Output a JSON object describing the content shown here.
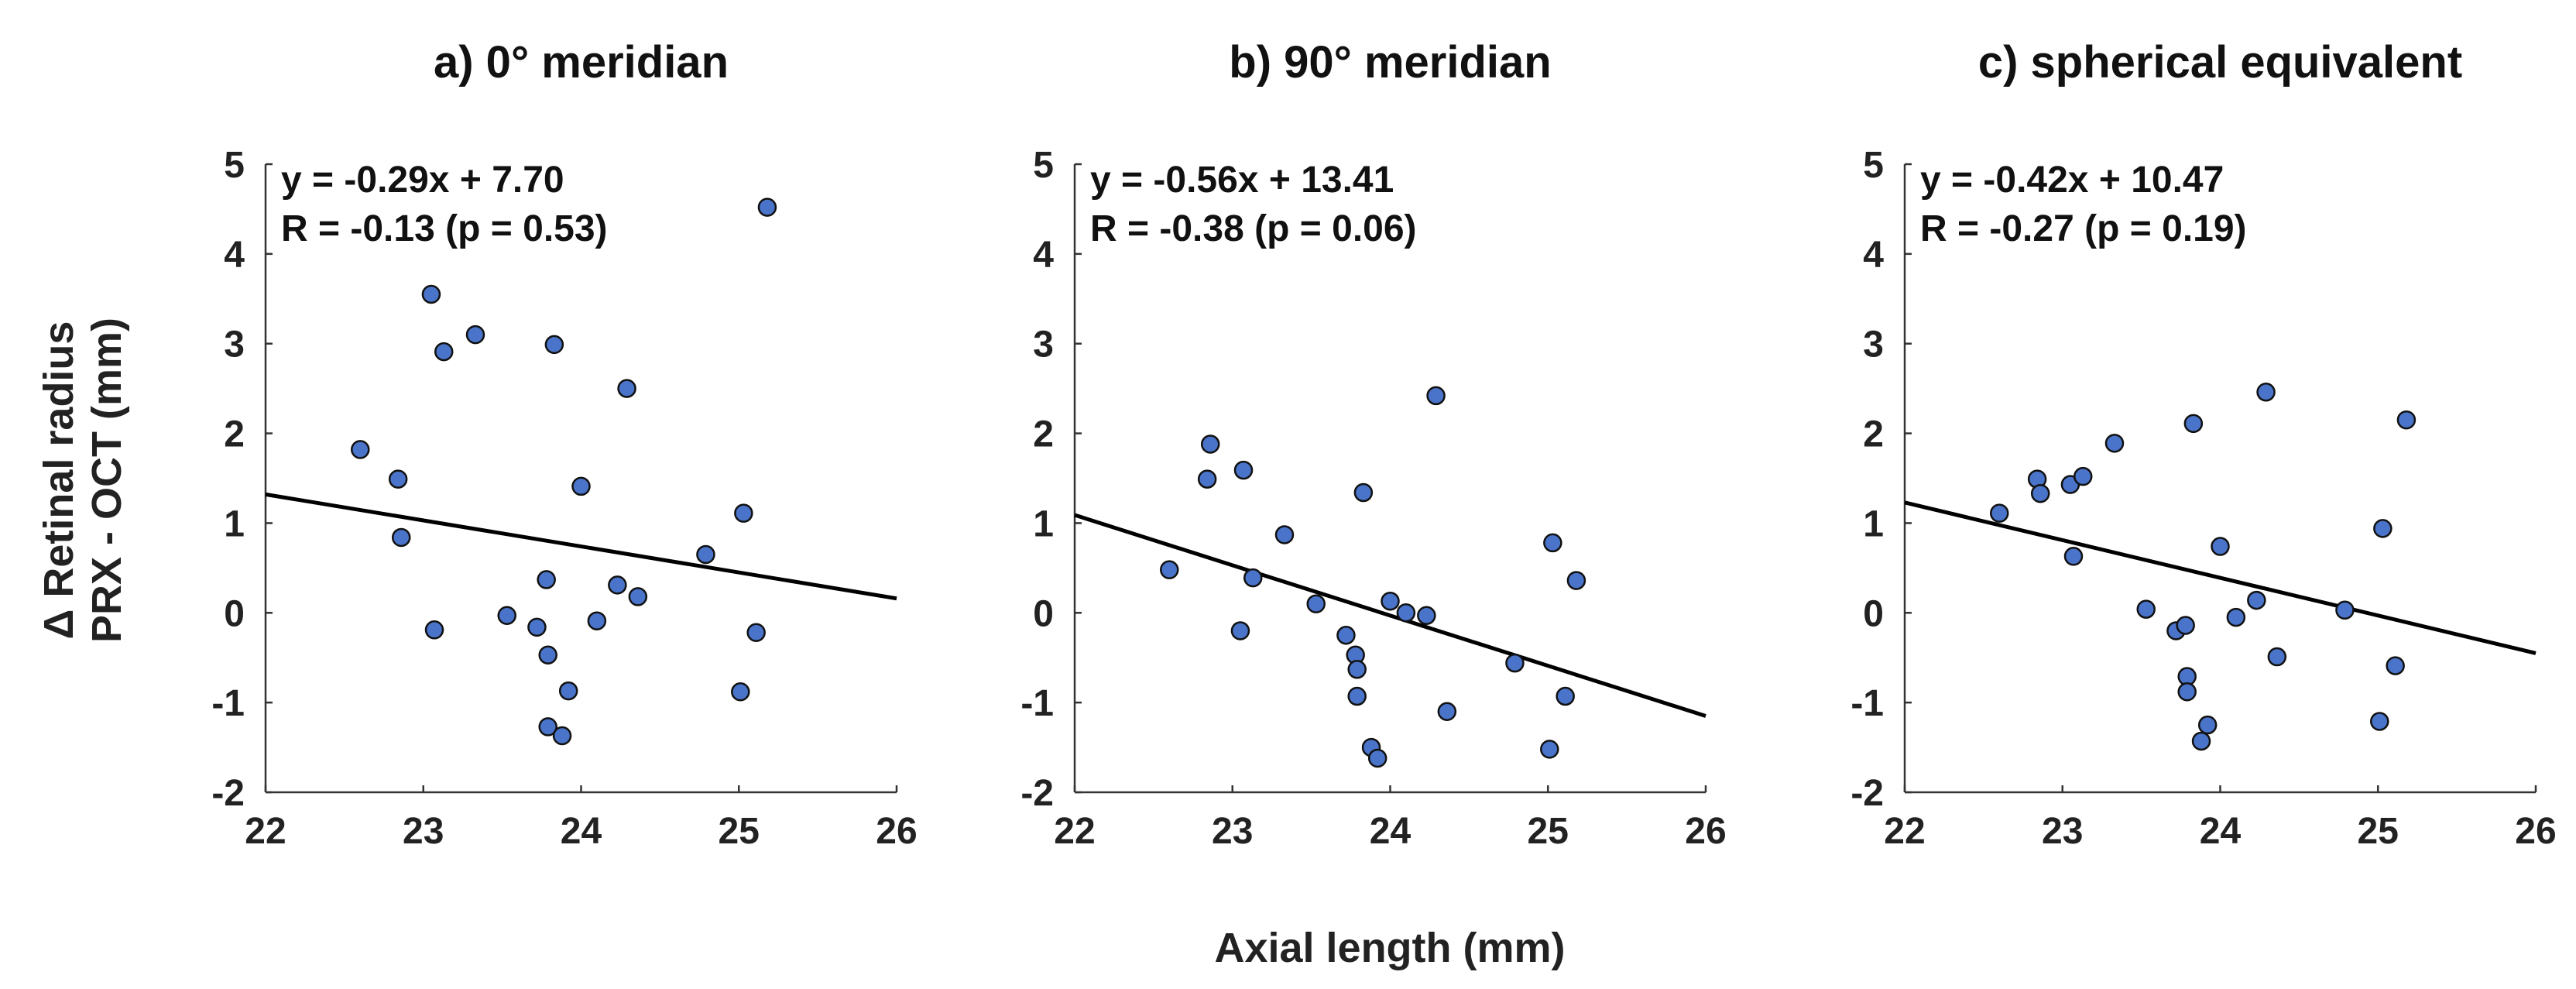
{
  "figure": {
    "xlabel": "Axial length (mm)",
    "ylabel_lines": [
      "Δ Retinal radius",
      "PRX - OCT (mm)"
    ]
  },
  "chart_data": [
    {
      "type": "scatter",
      "title": "a) 0° meridian",
      "equation": "y = -0.29x + 7.70",
      "stats": "R = -0.13 (p = 0.53)",
      "xlim": [
        22,
        26
      ],
      "ylim": [
        -2,
        5
      ],
      "xticks": [
        22,
        23,
        24,
        25,
        26
      ],
      "yticks": [
        5,
        4,
        3,
        2,
        1,
        0,
        -1,
        -2
      ],
      "fit": {
        "slope": -0.29,
        "intercept": 7.7
      },
      "points": [
        {
          "x": 22.6,
          "y": 1.82
        },
        {
          "x": 22.84,
          "y": 1.49
        },
        {
          "x": 22.86,
          "y": 0.84
        },
        {
          "x": 23.05,
          "y": 3.55
        },
        {
          "x": 23.07,
          "y": -0.19
        },
        {
          "x": 23.13,
          "y": 2.91
        },
        {
          "x": 23.33,
          "y": 3.1
        },
        {
          "x": 23.53,
          "y": -0.03
        },
        {
          "x": 23.72,
          "y": -0.16
        },
        {
          "x": 23.78,
          "y": 0.37
        },
        {
          "x": 23.79,
          "y": -0.47
        },
        {
          "x": 23.79,
          "y": -1.27
        },
        {
          "x": 23.83,
          "y": 2.99
        },
        {
          "x": 23.88,
          "y": -1.37
        },
        {
          "x": 23.92,
          "y": -0.87
        },
        {
          "x": 24.0,
          "y": 1.41
        },
        {
          "x": 24.1,
          "y": -0.09
        },
        {
          "x": 24.23,
          "y": 0.31
        },
        {
          "x": 24.29,
          "y": 2.5
        },
        {
          "x": 24.36,
          "y": 0.18
        },
        {
          "x": 24.79,
          "y": 0.65
        },
        {
          "x": 25.01,
          "y": -0.88
        },
        {
          "x": 25.03,
          "y": 1.11
        },
        {
          "x": 25.11,
          "y": -0.22
        },
        {
          "x": 25.18,
          "y": 4.52
        }
      ]
    },
    {
      "type": "scatter",
      "title": "b) 90° meridian",
      "equation": "y = -0.56x + 13.41",
      "stats": "R = -0.38 (p = 0.06)",
      "xlim": [
        22,
        26
      ],
      "ylim": [
        -2,
        5
      ],
      "xticks": [
        22,
        23,
        24,
        25,
        26
      ],
      "yticks": [
        5,
        4,
        3,
        2,
        1,
        0,
        -1,
        -2
      ],
      "fit": {
        "slope": -0.56,
        "intercept": 13.41
      },
      "points": [
        {
          "x": 22.6,
          "y": 0.48
        },
        {
          "x": 22.84,
          "y": 1.49
        },
        {
          "x": 22.86,
          "y": 1.88
        },
        {
          "x": 23.05,
          "y": -0.2
        },
        {
          "x": 23.07,
          "y": 1.59
        },
        {
          "x": 23.13,
          "y": 0.39
        },
        {
          "x": 23.33,
          "y": 0.87
        },
        {
          "x": 23.53,
          "y": 0.1
        },
        {
          "x": 23.72,
          "y": -0.25
        },
        {
          "x": 23.78,
          "y": -0.47
        },
        {
          "x": 23.79,
          "y": -0.63
        },
        {
          "x": 23.79,
          "y": -0.93
        },
        {
          "x": 23.83,
          "y": 1.34
        },
        {
          "x": 23.88,
          "y": -1.5
        },
        {
          "x": 23.92,
          "y": -1.62
        },
        {
          "x": 24.0,
          "y": 0.13
        },
        {
          "x": 24.1,
          "y": 0.0
        },
        {
          "x": 24.23,
          "y": -0.03
        },
        {
          "x": 24.29,
          "y": 2.42
        },
        {
          "x": 24.36,
          "y": -1.1
        },
        {
          "x": 24.79,
          "y": -0.56
        },
        {
          "x": 25.01,
          "y": -1.52
        },
        {
          "x": 25.03,
          "y": 0.78
        },
        {
          "x": 25.11,
          "y": -0.93
        },
        {
          "x": 25.18,
          "y": 0.36
        }
      ]
    },
    {
      "type": "scatter",
      "title": "c) spherical equivalent",
      "equation": "y = -0.42x + 10.47",
      "stats": "R = -0.27 (p = 0.19)",
      "xlim": [
        22,
        26
      ],
      "ylim": [
        -2,
        5
      ],
      "xticks": [
        22,
        23,
        24,
        25,
        26
      ],
      "yticks": [
        5,
        4,
        3,
        2,
        1,
        0,
        -1,
        -2
      ],
      "fit": {
        "slope": -0.42,
        "intercept": 10.47
      },
      "points": [
        {
          "x": 22.6,
          "y": 1.11
        },
        {
          "x": 22.84,
          "y": 1.49
        },
        {
          "x": 22.86,
          "y": 1.33
        },
        {
          "x": 23.05,
          "y": 1.43
        },
        {
          "x": 23.07,
          "y": 0.63
        },
        {
          "x": 23.13,
          "y": 1.52
        },
        {
          "x": 23.33,
          "y": 1.89
        },
        {
          "x": 23.53,
          "y": 0.04
        },
        {
          "x": 23.72,
          "y": -0.2
        },
        {
          "x": 23.78,
          "y": -0.14
        },
        {
          "x": 23.79,
          "y": -0.71
        },
        {
          "x": 23.79,
          "y": -0.88
        },
        {
          "x": 23.83,
          "y": 2.11
        },
        {
          "x": 23.88,
          "y": -1.43
        },
        {
          "x": 23.92,
          "y": -1.25
        },
        {
          "x": 24.0,
          "y": 0.74
        },
        {
          "x": 24.1,
          "y": -0.05
        },
        {
          "x": 24.23,
          "y": 0.14
        },
        {
          "x": 24.29,
          "y": 2.46
        },
        {
          "x": 24.36,
          "y": -0.49
        },
        {
          "x": 24.79,
          "y": 0.03
        },
        {
          "x": 25.01,
          "y": -1.21
        },
        {
          "x": 25.03,
          "y": 0.94
        },
        {
          "x": 25.11,
          "y": -0.59
        },
        {
          "x": 25.18,
          "y": 2.15
        }
      ]
    }
  ]
}
